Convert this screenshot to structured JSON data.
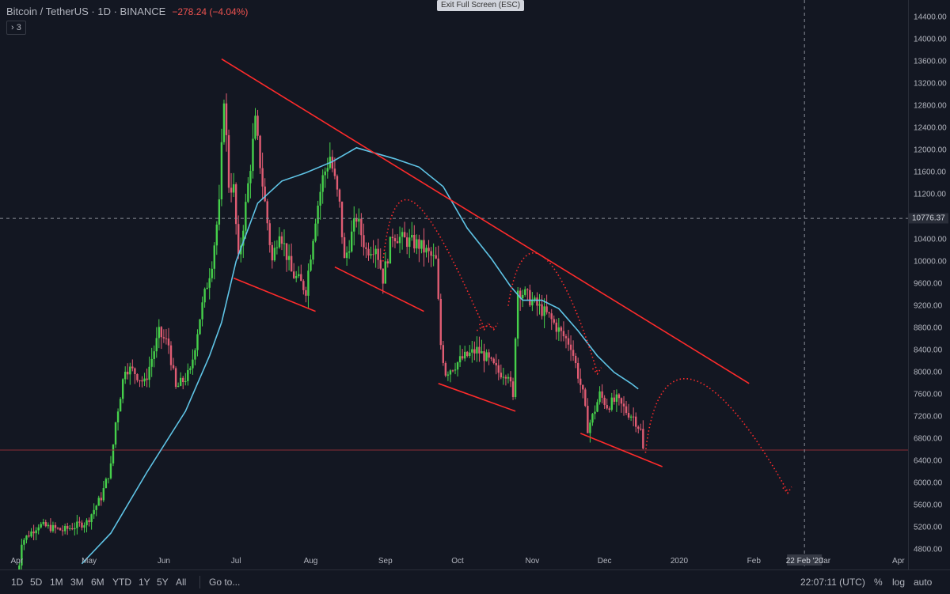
{
  "header": {
    "symbol": "Bitcoin / TetherUS · 1D · BINANCE",
    "change": "−278.24 (−4.04%)",
    "collapse_label": "› 3"
  },
  "exit_fullscreen_label": "Exit Full Screen (ESC)",
  "chart_data": {
    "type": "candlestick",
    "title": "Bitcoin / TetherUS · 1D · BINANCE",
    "y_range": [
      4560,
      14600
    ],
    "y_ticks": [
      "4800.00",
      "5200.00",
      "5600.00",
      "6000.00",
      "6400.00",
      "6800.00",
      "7200.00",
      "7600.00",
      "8000.00",
      "8400.00",
      "8800.00",
      "9200.00",
      "9600.00",
      "10000.00",
      "10400.00",
      "10800.00",
      "11200.00",
      "11600.00",
      "12000.00",
      "12400.00",
      "12800.00",
      "13200.00",
      "13600.00",
      "14000.00",
      "14400.00"
    ],
    "x_range": [
      "2019-03-25",
      "2020-04-05"
    ],
    "x_ticks": [
      {
        "date": "2019-04-01",
        "label": "Apr"
      },
      {
        "date": "2019-05-01",
        "label": "May"
      },
      {
        "date": "2019-06-01",
        "label": "Jun"
      },
      {
        "date": "2019-07-01",
        "label": "Jul"
      },
      {
        "date": "2019-08-01",
        "label": "Aug"
      },
      {
        "date": "2019-09-01",
        "label": "Sep"
      },
      {
        "date": "2019-10-01",
        "label": "Oct"
      },
      {
        "date": "2019-11-01",
        "label": "Nov"
      },
      {
        "date": "2019-12-01",
        "label": "Dec"
      },
      {
        "date": "2020-01-01",
        "label": "2020"
      },
      {
        "date": "2020-02-01",
        "label": "Feb"
      },
      {
        "date": "2020-03-01",
        "label": "Mar"
      },
      {
        "date": "2020-04-01",
        "label": "Apr"
      }
    ],
    "price_path": [
      [
        "2019-04-01",
        4150
      ],
      [
        "2019-04-03",
        4950
      ],
      [
        "2019-04-10",
        5250
      ],
      [
        "2019-04-20",
        5150
      ],
      [
        "2019-04-30",
        5300
      ],
      [
        "2019-05-06",
        5750
      ],
      [
        "2019-05-10",
        6300
      ],
      [
        "2019-05-12",
        7100
      ],
      [
        "2019-05-16",
        8100
      ],
      [
        "2019-05-20",
        8000
      ],
      [
        "2019-05-24",
        7800
      ],
      [
        "2019-05-30",
        8700
      ],
      [
        "2019-06-03",
        8500
      ],
      [
        "2019-06-06",
        7700
      ],
      [
        "2019-06-12",
        8000
      ],
      [
        "2019-06-16",
        9000
      ],
      [
        "2019-06-21",
        10000
      ],
      [
        "2019-06-24",
        11000
      ],
      [
        "2019-06-26",
        13000
      ],
      [
        "2019-06-28",
        11400
      ],
      [
        "2019-06-30",
        11300
      ],
      [
        "2019-07-02",
        10000
      ],
      [
        "2019-07-05",
        11000
      ],
      [
        "2019-07-09",
        12500
      ],
      [
        "2019-07-12",
        11400
      ],
      [
        "2019-07-16",
        10000
      ],
      [
        "2019-07-19",
        10600
      ],
      [
        "2019-07-24",
        9800
      ],
      [
        "2019-07-30",
        9500
      ],
      [
        "2019-08-03",
        10800
      ],
      [
        "2019-08-06",
        11500
      ],
      [
        "2019-08-09",
        11900
      ],
      [
        "2019-08-13",
        11000
      ],
      [
        "2019-08-15",
        10000
      ],
      [
        "2019-08-20",
        10800
      ],
      [
        "2019-08-24",
        10200
      ],
      [
        "2019-08-28",
        10300
      ],
      [
        "2019-08-31",
        9700
      ],
      [
        "2019-09-04",
        10500
      ],
      [
        "2019-09-08",
        10400
      ],
      [
        "2019-09-15",
        10300
      ],
      [
        "2019-09-22",
        10000
      ],
      [
        "2019-09-24",
        8500
      ],
      [
        "2019-09-26",
        8000
      ],
      [
        "2019-10-03",
        8250
      ],
      [
        "2019-10-09",
        8400
      ],
      [
        "2019-10-12",
        8300
      ],
      [
        "2019-10-18",
        8000
      ],
      [
        "2019-10-22",
        8000
      ],
      [
        "2019-10-24",
        7500
      ],
      [
        "2019-10-25",
        8700
      ],
      [
        "2019-10-26",
        9500
      ],
      [
        "2019-10-29",
        9400
      ],
      [
        "2019-11-03",
        9200
      ],
      [
        "2019-11-08",
        9000
      ],
      [
        "2019-11-13",
        8700
      ],
      [
        "2019-11-17",
        8500
      ],
      [
        "2019-11-22",
        7600
      ],
      [
        "2019-11-24",
        7000
      ],
      [
        "2019-11-26",
        7200
      ],
      [
        "2019-11-29",
        7600
      ],
      [
        "2019-12-02",
        7400
      ],
      [
        "2019-12-06",
        7500
      ],
      [
        "2019-12-10",
        7300
      ],
      [
        "2019-12-13",
        7200
      ],
      [
        "2019-12-16",
        6950
      ],
      [
        "2019-12-17",
        6600
      ]
    ],
    "moving_average": [
      [
        "2019-04-28",
        4550
      ],
      [
        "2019-05-10",
        5100
      ],
      [
        "2019-05-25",
        6200
      ],
      [
        "2019-06-10",
        7300
      ],
      [
        "2019-06-20",
        8300
      ],
      [
        "2019-06-25",
        8900
      ],
      [
        "2019-07-01",
        10000
      ],
      [
        "2019-07-10",
        11050
      ],
      [
        "2019-07-20",
        11450
      ],
      [
        "2019-07-30",
        11600
      ],
      [
        "2019-08-10",
        11800
      ],
      [
        "2019-08-20",
        12050
      ],
      [
        "2019-08-28",
        11950
      ],
      [
        "2019-09-05",
        11850
      ],
      [
        "2019-09-15",
        11700
      ],
      [
        "2019-09-25",
        11350
      ],
      [
        "2019-10-05",
        10600
      ],
      [
        "2019-10-15",
        10050
      ],
      [
        "2019-10-23",
        9550
      ],
      [
        "2019-10-28",
        9300
      ],
      [
        "2019-11-05",
        9300
      ],
      [
        "2019-11-12",
        9150
      ],
      [
        "2019-11-20",
        8750
      ],
      [
        "2019-11-28",
        8300
      ],
      [
        "2019-12-05",
        8000
      ],
      [
        "2019-12-12",
        7800
      ],
      [
        "2019-12-15",
        7700
      ]
    ],
    "trend_lines": [
      {
        "from": [
          "2019-06-25",
          13650
        ],
        "to": [
          "2020-01-30",
          7800
        ],
        "color": "#ff2b2b"
      },
      {
        "from": [
          "2019-06-30",
          9700
        ],
        "to": [
          "2019-08-03",
          9100
        ],
        "color": "#ff2b2b"
      },
      {
        "from": [
          "2019-08-11",
          9900
        ],
        "to": [
          "2019-09-17",
          9100
        ],
        "color": "#ff2b2b"
      },
      {
        "from": [
          "2019-09-23",
          7800
        ],
        "to": [
          "2019-10-25",
          7300
        ],
        "color": "#ff2b2b"
      },
      {
        "from": [
          "2019-11-21",
          6900
        ],
        "to": [
          "2019-12-25",
          6300
        ],
        "color": "#ff2b2b"
      }
    ],
    "projection_arcs": [
      {
        "points": [
          [
            "2019-08-31",
            10000
          ],
          [
            "2019-09-05",
            11400
          ],
          [
            "2019-09-18",
            10600
          ],
          [
            "2019-10-12",
            8800
          ]
        ]
      },
      {
        "points": [
          [
            "2019-10-09",
            8750
          ],
          [
            "2019-10-16",
            8800
          ]
        ]
      },
      {
        "points": [
          [
            "2019-10-22",
            9200
          ],
          [
            "2019-10-28",
            10300
          ],
          [
            "2019-11-12",
            9700
          ],
          [
            "2019-11-28",
            8000
          ]
        ]
      },
      {
        "points": [
          [
            "2019-12-18",
            6550
          ],
          [
            "2019-12-23",
            8000
          ],
          [
            "2020-01-15",
            7700
          ],
          [
            "2020-02-15",
            5850
          ]
        ]
      }
    ],
    "horizontal_lines": [
      {
        "price": 10776.37,
        "style": "dashed",
        "color": "#8a8e99",
        "label": "10776.37"
      },
      {
        "price": 6600,
        "style": "solid",
        "color": "#8b2c36"
      }
    ],
    "vertical_lines": [
      {
        "date": "2020-02-22",
        "style": "dashed",
        "color": "#8a8e99",
        "label": "22 Feb '20"
      }
    ]
  },
  "range_buttons": [
    "1D",
    "5D",
    "1M",
    "3M",
    "6M",
    "YTD",
    "1Y",
    "5Y",
    "All"
  ],
  "goto_label": "Go to...",
  "clock": "22:07:11 (UTC)",
  "scale_buttons": {
    "percent": "%",
    "log": "log",
    "auto": "auto"
  },
  "colors": {
    "background": "#131722",
    "up": "#46d04b",
    "down": "#e05c73",
    "ma": "#5fc4e6",
    "trend": "#ff2b2b",
    "text": "#b2b5be"
  }
}
